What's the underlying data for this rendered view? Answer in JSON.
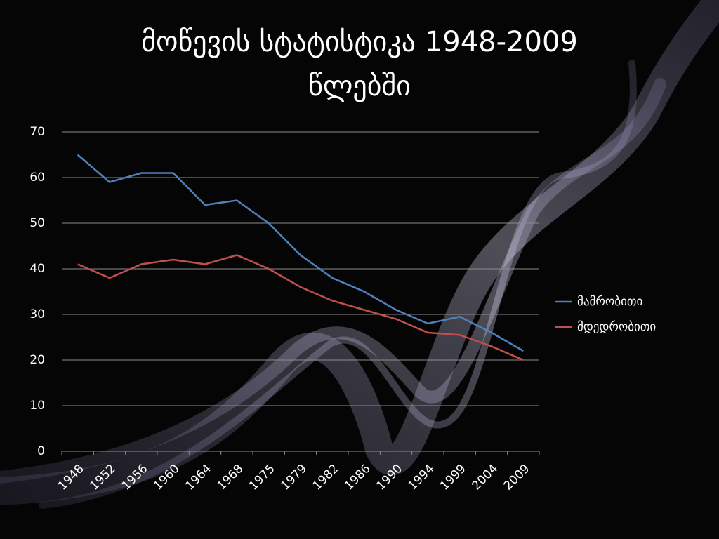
{
  "chart_data": {
    "type": "line",
    "title": "მოწევის სტატისტიკა 1948-2009 წლებში",
    "categories": [
      "1948",
      "1952",
      "1956",
      "1960",
      "1964",
      "1968",
      "1975",
      "1979",
      "1982",
      "1986",
      "1990",
      "1994",
      "1999",
      "2004",
      "2009"
    ],
    "series": [
      {
        "name": "მამრობითი",
        "color": "#4f81bd",
        "values": [
          65,
          59,
          61,
          61,
          54,
          55,
          50,
          43,
          38,
          35,
          31,
          28,
          29.5,
          26,
          22
        ]
      },
      {
        "name": "მდედრობითი",
        "color": "#c0504d",
        "values": [
          41,
          38,
          41,
          42,
          41,
          43,
          40,
          36,
          33,
          31,
          29,
          26,
          25.5,
          23,
          20
        ]
      }
    ],
    "ylim": [
      0,
      70
    ],
    "yticks": [
      0,
      10,
      20,
      30,
      40,
      50,
      60,
      70
    ],
    "grid": true,
    "legend": "right"
  }
}
